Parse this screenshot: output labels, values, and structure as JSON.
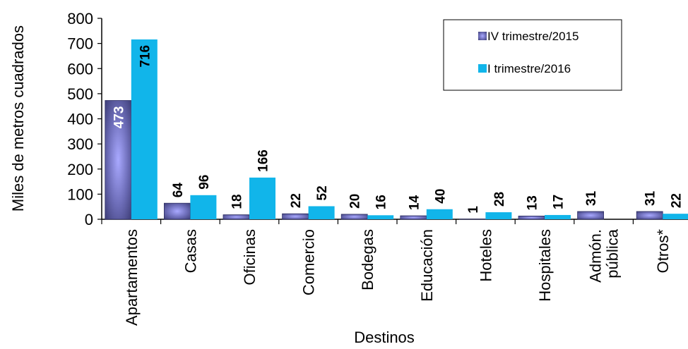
{
  "chart_data": {
    "type": "bar",
    "xlabel": "Destinos",
    "ylabel": "Miles de metros cuadrados",
    "ylim": [
      0,
      800
    ],
    "yticks": [
      0,
      100,
      200,
      300,
      400,
      500,
      600,
      700,
      800
    ],
    "categories": [
      [
        "Apartamentos"
      ],
      [
        "Casas"
      ],
      [
        "Oficinas"
      ],
      [
        "Comercio"
      ],
      [
        "Bodegas"
      ],
      [
        "Educación"
      ],
      [
        "Hoteles"
      ],
      [
        "Hospitales"
      ],
      [
        "Admón.",
        "pública"
      ],
      [
        "Otros*"
      ]
    ],
    "series": [
      {
        "name": "IV trimestre/2015",
        "color": "#5a5a9c",
        "values": [
          473,
          64,
          18,
          22,
          20,
          14,
          1,
          13,
          31,
          31
        ],
        "labels": [
          "473",
          "64",
          "18",
          "22",
          "20",
          "14",
          "1",
          "13",
          "",
          "31"
        ]
      },
      {
        "name": "I trimestre/2016",
        "color": "#11b5ea",
        "values": [
          716,
          96,
          166,
          52,
          16,
          40,
          28,
          17,
          0,
          22
        ],
        "labels": [
          "716",
          "96",
          "166",
          "52",
          "16",
          "40",
          "28",
          "17",
          "",
          "22"
        ]
      }
    ],
    "extra_labels": [
      {
        "category_index": 8,
        "text": "31"
      }
    ],
    "legend": {
      "position": "top-right"
    },
    "grid": false
  }
}
